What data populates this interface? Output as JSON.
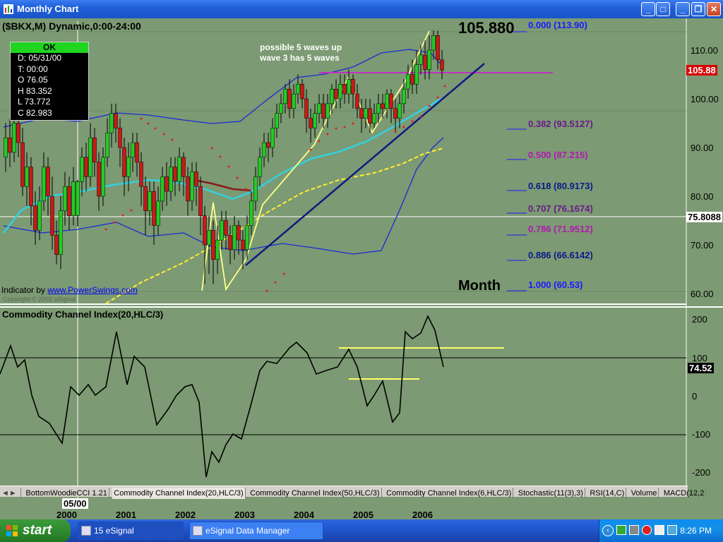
{
  "window": {
    "title": "Monthly Chart"
  },
  "chart": {
    "symbol_line": "($BKX,M) Dynamic,0:00-24:00",
    "last_price": "105.880",
    "annotation_line1": "possible 5 waves up",
    "annotation_line2": "wave 3 has 5 waves",
    "indicator_credit_prefix": "Indicator by ",
    "indicator_credit_link": "www.PowerSwings.com",
    "copyright": "Copyright © 2002 eSignal",
    "period_label": "Month",
    "ohlc": {
      "status": "OK",
      "date": "D: 05/31/00",
      "time": "T: 00:00",
      "open": "O  76.05",
      "high": "H  83.352",
      "low": "L  73.772",
      "close": "C  82.983"
    },
    "price_axis": [
      "110.00",
      "100.00",
      "90.00",
      "80.00",
      "70.00",
      "60.00"
    ],
    "price_tag_current": "105.88",
    "price_tag_crosshair": "75.8088",
    "fib_levels": [
      {
        "label": "0.000 (113.90)",
        "color": "#1a1aff"
      },
      {
        "label": "0.382 (93.5127)",
        "color": "#6a1a8a"
      },
      {
        "label": "0.500 (87.215)",
        "color": "#b01ab0"
      },
      {
        "label": "0.618 (80.9173)",
        "color": "#0a1a8a"
      },
      {
        "label": "0.707 (76.1674)",
        "color": "#6a1a8a"
      },
      {
        "label": "0.786 (71.9512)",
        "color": "#b01ab0"
      },
      {
        "label": "0.886 (66.6142)",
        "color": "#0a1a8a"
      },
      {
        "label": "1.000 (60.53)",
        "color": "#1a1aff"
      }
    ]
  },
  "cci": {
    "title": "Commodity Channel Index(20,HLC/3)",
    "axis": [
      "200",
      "100",
      "0",
      "-100",
      "-200"
    ],
    "current_value": "74.52"
  },
  "x_axis": {
    "cursor_label": "05/00",
    "years": [
      "2000",
      "2001",
      "2002",
      "2003",
      "2004",
      "2005",
      "2006"
    ]
  },
  "tabs": [
    "BottomWoodieCCI 1.21",
    "Commodity Channel Index(20,HLC/3)",
    "Commodity Channel Index(50,HLC/3)",
    "Commodity Channel Index(6,HLC/3)",
    "Stochastic(11(3),3)",
    "RSI(14,C)",
    "Volume",
    "MACD(12,2"
  ],
  "taskbar": {
    "start_label": "start",
    "tasks": [
      "15 eSignal",
      "eSignal Data Manager"
    ],
    "clock": "8:26 PM"
  },
  "colors": {
    "chart_bg": "#7c9a73",
    "fib_line": "#1a1aff",
    "trend_yellow": "#ffff66",
    "bollinger": "#1a2ad6",
    "cyan_ma": "#33d0e0"
  }
}
